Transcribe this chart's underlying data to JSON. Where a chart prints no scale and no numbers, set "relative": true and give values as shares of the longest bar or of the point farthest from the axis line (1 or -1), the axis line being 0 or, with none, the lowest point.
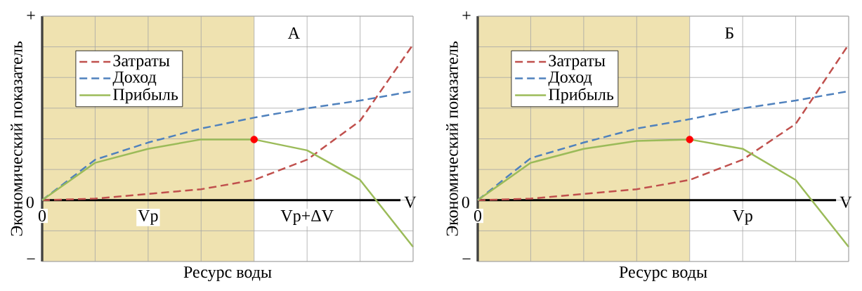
{
  "chart_data": [
    {
      "type": "line",
      "title": "А",
      "xlabel": "Ресурс воды",
      "ylabel": "Экономический показатель",
      "relative": true,
      "grid": true,
      "legend": "top left",
      "categories": [
        "0",
        null,
        "Vp",
        null,
        null,
        "Vp+ΔV",
        null,
        null
      ],
      "series": [
        {
          "name": "Затраты",
          "color": "#c0504d",
          "line_style": "dashed",
          "values": [
            0,
            0.01,
            0.04,
            0.07,
            0.13,
            0.26,
            0.51,
            1
          ]
        },
        {
          "name": "Доход",
          "color": "#4f81bd",
          "line_style": "dashed",
          "values": [
            0,
            0.26,
            0.37,
            0.46,
            0.53,
            0.59,
            0.64,
            0.7
          ]
        },
        {
          "name": "Прибыль",
          "color": "#9bbb59",
          "line_style": "solid",
          "values": [
            0,
            0.24,
            0.33,
            0.39,
            0.39,
            0.32,
            0.13,
            -0.3
          ]
        },
        {
          "type": "scatter",
          "color": "#ff0000",
          "values": [
            null,
            null,
            null,
            null,
            0.39,
            null,
            null,
            null
          ]
        }
      ],
      "annotations": [
        "+",
        "0",
        "−",
        "V"
      ]
    },
    {
      "type": "line",
      "title": "Б",
      "xlabel": "Ресурс воды",
      "ylabel": "Экономический показатель",
      "relative": true,
      "grid": true,
      "legend": "top left",
      "categories": [
        "0",
        null,
        null,
        null,
        null,
        "Vp",
        null,
        null
      ],
      "series": [
        {
          "name": "Затраты",
          "color": "#c0504d",
          "line_style": "dashed",
          "values": [
            0,
            0.01,
            0.04,
            0.07,
            0.13,
            0.26,
            0.49,
            1
          ]
        },
        {
          "name": "Доход",
          "color": "#4f81bd",
          "line_style": "dashed",
          "values": [
            0,
            0.27,
            0.37,
            0.46,
            0.52,
            0.59,
            0.64,
            0.7
          ]
        },
        {
          "name": "Прибыль",
          "color": "#9bbb59",
          "line_style": "solid",
          "values": [
            0,
            0.24,
            0.33,
            0.38,
            0.39,
            0.33,
            0.13,
            -0.3
          ]
        },
        {
          "type": "scatter",
          "color": "#ff0000",
          "values": [
            null,
            null,
            null,
            null,
            0.39,
            null,
            null,
            null
          ]
        }
      ],
      "annotations": [
        "+",
        "0",
        "−",
        "V"
      ]
    }
  ]
}
